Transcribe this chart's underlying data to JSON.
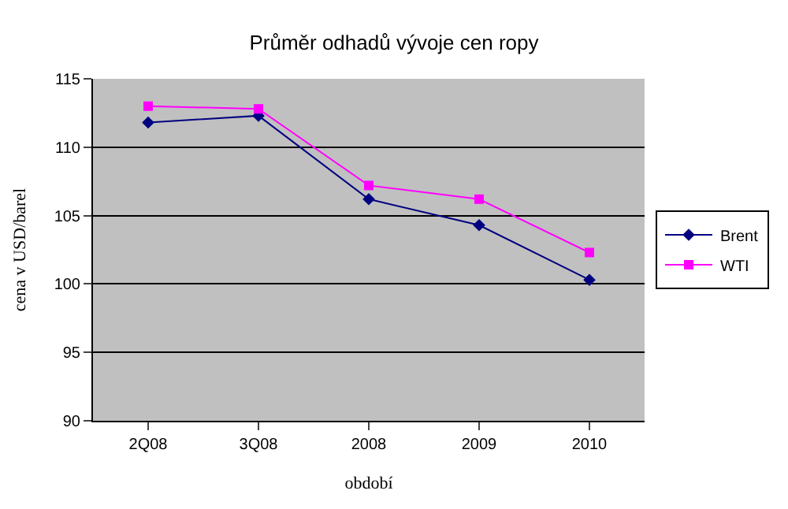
{
  "chart_data": {
    "type": "line",
    "title": "Průměr odhadů vývoje cen ropy",
    "xlabel": "období",
    "ylabel": "cena v USD/barel",
    "categories": [
      "2Q08",
      "3Q08",
      "2008",
      "2009",
      "2010"
    ],
    "series": [
      {
        "name": "Brent",
        "color": "#000080",
        "marker": "diamond",
        "values": [
          111.8,
          112.3,
          106.2,
          104.3,
          100.3
        ]
      },
      {
        "name": "WTI",
        "color": "#ff00ff",
        "marker": "square",
        "values": [
          113.0,
          112.8,
          107.2,
          106.2,
          102.3
        ]
      }
    ],
    "ylim": [
      90,
      115
    ],
    "yticks": [
      90,
      95,
      100,
      105,
      110,
      115
    ],
    "grid": "y",
    "legend": "right"
  }
}
